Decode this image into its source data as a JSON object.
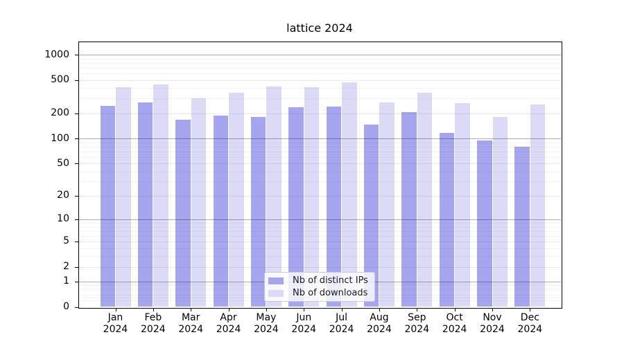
{
  "title": "lattice 2024",
  "chart_data": {
    "type": "bar",
    "title": "lattice 2024",
    "scale": "log1p",
    "grid": true,
    "categories": [
      "Jan 2024",
      "Feb 2024",
      "Mar 2024",
      "Apr 2024",
      "May 2024",
      "Jun 2024",
      "Jul 2024",
      "Aug 2024",
      "Sep 2024",
      "Oct 2024",
      "Nov 2024",
      "Dec 2024"
    ],
    "series": [
      {
        "name": "Nb of distinct IPs",
        "color": "#a5a5f0",
        "values": [
          245,
          270,
          167,
          188,
          180,
          238,
          240,
          146,
          205,
          116,
          94,
          80
        ]
      },
      {
        "name": "Nb of downloads",
        "color": "#dbdbf7",
        "values": [
          410,
          443,
          300,
          353,
          420,
          410,
          472,
          272,
          353,
          264,
          180,
          254
        ]
      }
    ],
    "yticks": [
      0,
      1,
      2,
      5,
      10,
      20,
      50,
      100,
      200,
      500,
      1000
    ],
    "ylim": [
      0,
      1430
    ],
    "xlabel": "",
    "ylabel": "",
    "legend_position": "lower center",
    "colors": {
      "major_grid": "rgba(0,0,0,0.32)",
      "minor_grid": "rgba(0,0,0,0.08)",
      "sub_minor_grid": "rgba(0,0,0,0.045)"
    }
  }
}
